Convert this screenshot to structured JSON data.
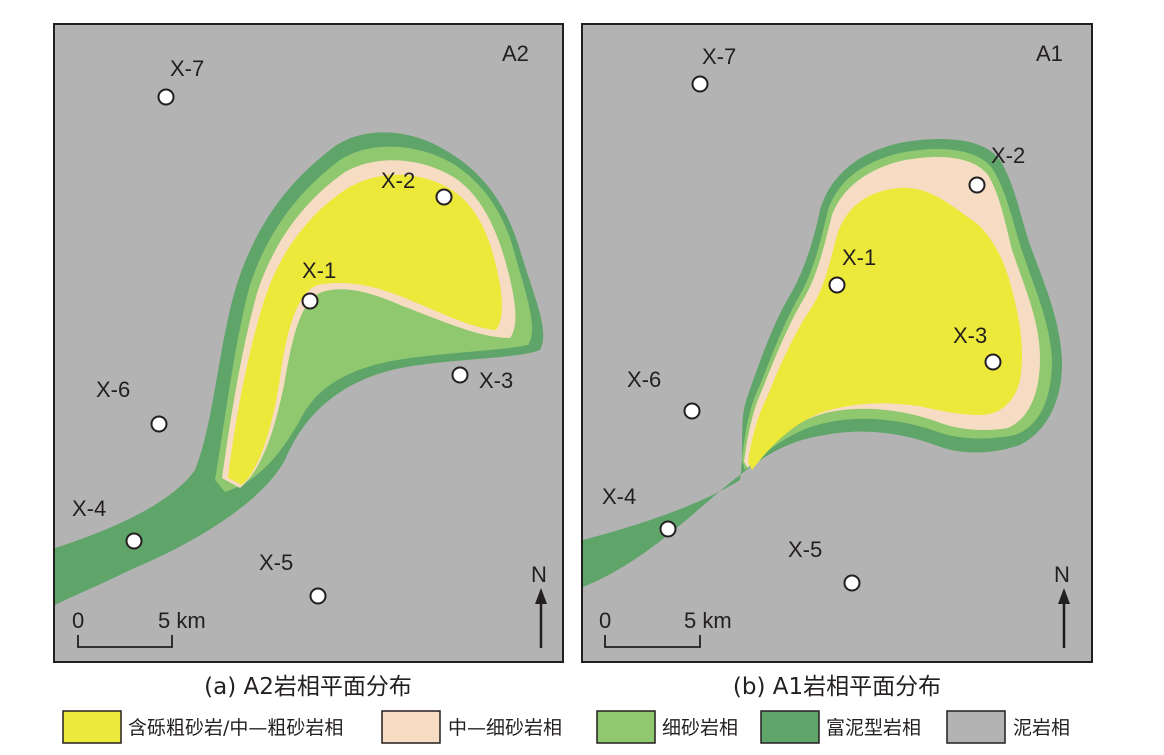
{
  "colors": {
    "mud": "#b3b3b3",
    "mud_rich": "#5fa56a",
    "fine_sand": "#8fc86f",
    "medium_fine_sand": "#f6dcc2",
    "gravel_coarse_sand": "#ede93b",
    "frame": "#231f20"
  },
  "maps": [
    {
      "id": "A2",
      "corner_label": "A2",
      "caption": "(a) A2岩相平面分布",
      "wells": [
        {
          "name": "X-7"
        },
        {
          "name": "X-2"
        },
        {
          "name": "X-1"
        },
        {
          "name": "X-3"
        },
        {
          "name": "X-6"
        },
        {
          "name": "X-4"
        },
        {
          "name": "X-5"
        }
      ],
      "scale": {
        "start": "0",
        "end": "5 km"
      },
      "north": "N"
    },
    {
      "id": "A1",
      "corner_label": "A1",
      "caption": "(b) A1岩相平面分布",
      "wells": [
        {
          "name": "X-7"
        },
        {
          "name": "X-2"
        },
        {
          "name": "X-1"
        },
        {
          "name": "X-3"
        },
        {
          "name": "X-6"
        },
        {
          "name": "X-4"
        },
        {
          "name": "X-5"
        }
      ],
      "scale": {
        "start": "0",
        "end": "5 km"
      },
      "north": "N"
    }
  ],
  "legend": [
    {
      "key": "gravel_coarse_sand",
      "label": "含砾粗砂岩/中—粗砂岩相"
    },
    {
      "key": "medium_fine_sand",
      "label": "中—细砂岩相"
    },
    {
      "key": "fine_sand",
      "label": "细砂岩相"
    },
    {
      "key": "mud_rich",
      "label": "富泥型岩相"
    },
    {
      "key": "mud",
      "label": "泥岩相"
    }
  ]
}
